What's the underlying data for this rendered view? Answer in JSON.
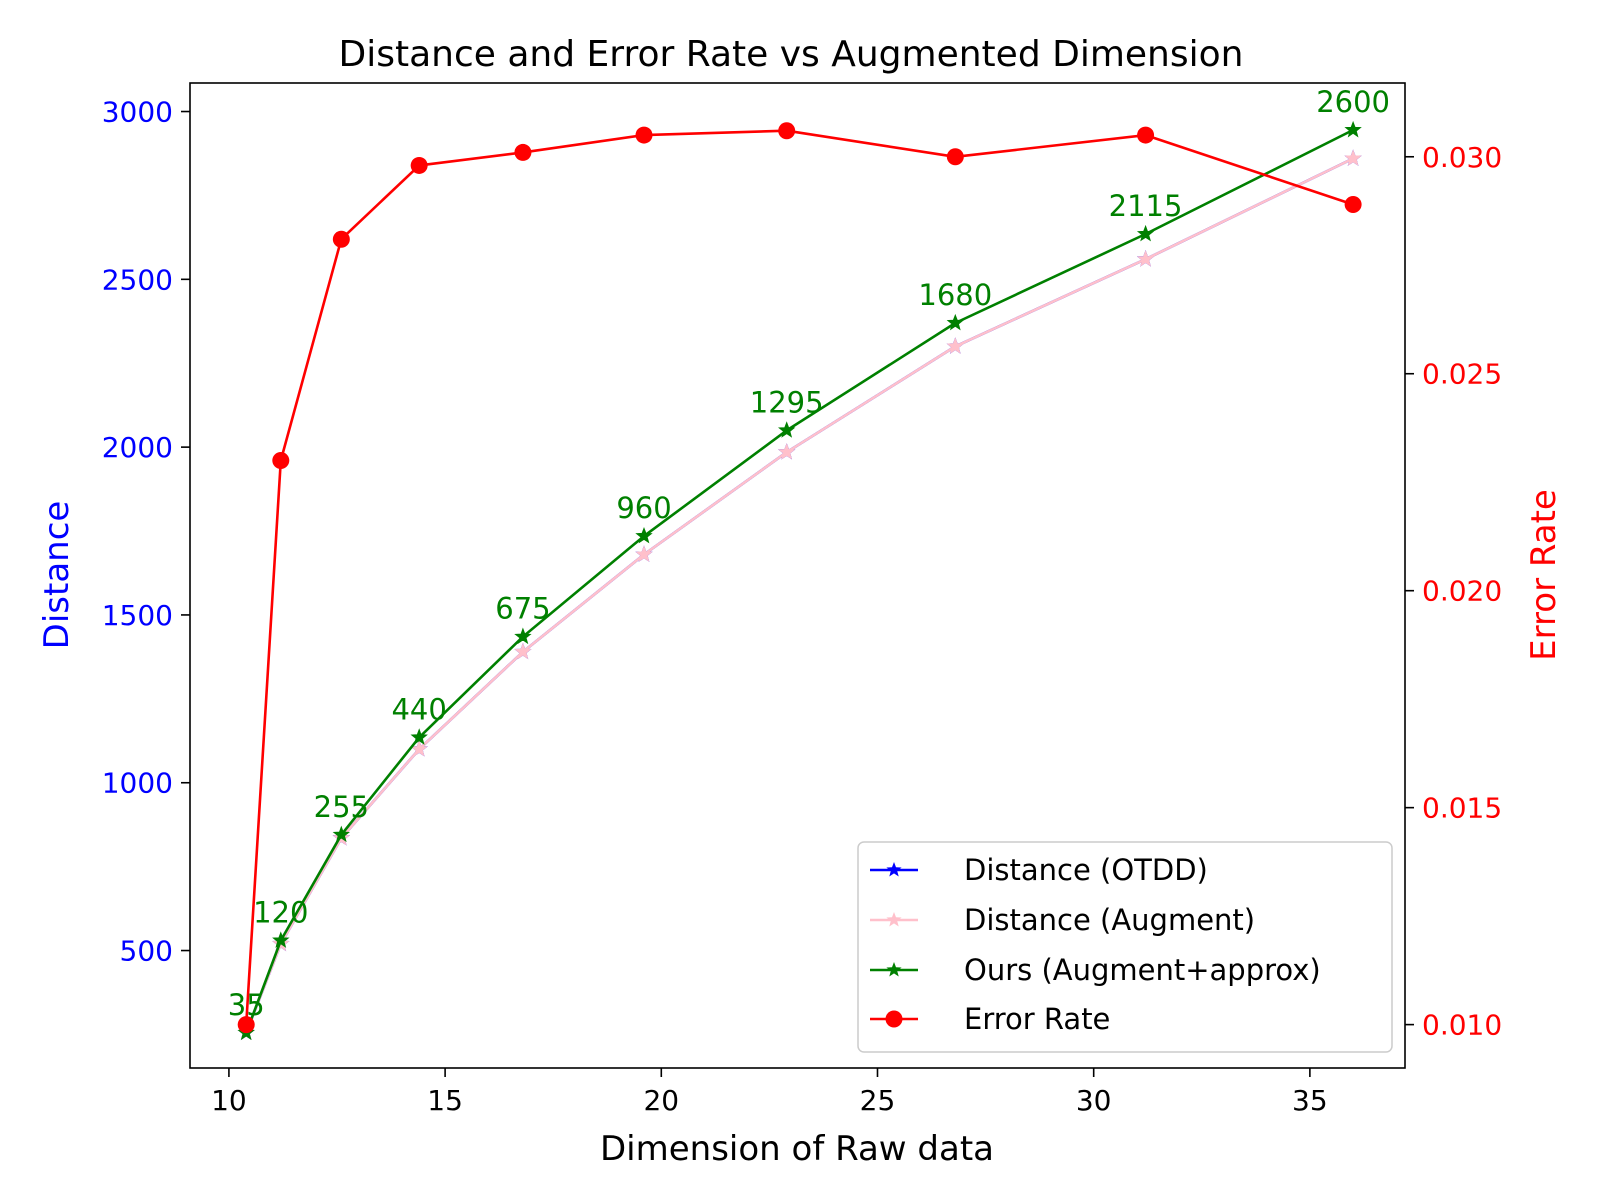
{
  "chart_data": {
    "type": "line",
    "title": "Distance and Error Rate vs Augmented Dimension",
    "xlabel": "Dimension of Raw data",
    "ylabel_left": "Distance",
    "ylabel_right": "Error Rate",
    "xlim": [
      9.1,
      37.2
    ],
    "ylim_left": [
      150,
      3085
    ],
    "ylim_right": [
      0.009,
      0.0317
    ],
    "x": [
      10.4,
      11.2,
      12.6,
      14.4,
      16.8,
      19.6,
      22.9,
      26.8,
      31.2,
      36.0
    ],
    "xticks": [
      10,
      15,
      20,
      25,
      30,
      35
    ],
    "yticks_left": [
      500,
      1000,
      1500,
      2000,
      2500,
      3000
    ],
    "yticks_right": [
      0.01,
      0.015,
      0.02,
      0.025,
      0.03
    ],
    "yticks_right_labels": [
      "0.010",
      "0.015",
      "0.020",
      "0.025",
      "0.030"
    ],
    "grid": false,
    "legend_position": "lower right",
    "colors": {
      "left_axis": "#0000ff",
      "right_axis": "#ff0000",
      "otdd": "#0000ff",
      "augment": "#ffc0cb",
      "ours": "#008000",
      "error": "#ff0000"
    },
    "series": [
      {
        "name": "Distance (OTDD)",
        "axis": "left",
        "marker": "star",
        "color": "#0000ff",
        "values": [
          255,
          520,
          835,
          1100,
          1390,
          1680,
          1985,
          2300,
          2560,
          2860
        ]
      },
      {
        "name": "Distance (Augment)",
        "axis": "left",
        "marker": "star",
        "color": "#ffc0cb",
        "values": [
          255,
          520,
          835,
          1100,
          1390,
          1680,
          1985,
          2300,
          2560,
          2860
        ]
      },
      {
        "name": "Ours (Augment+approx)",
        "axis": "left",
        "marker": "star",
        "color": "#008000",
        "values": [
          255,
          530,
          845,
          1135,
          1435,
          1735,
          2050,
          2370,
          2635,
          2945
        ]
      },
      {
        "name": "Error Rate",
        "axis": "right",
        "marker": "circle",
        "color": "#ff0000",
        "values": [
          0.01,
          0.023,
          0.0281,
          0.0298,
          0.0301,
          0.0305,
          0.0306,
          0.03,
          0.0305,
          0.0289
        ]
      }
    ],
    "annotations": [
      "35",
      "120",
      "255",
      "440",
      "675",
      "960",
      "1295",
      "1680",
      "2115",
      "2600"
    ]
  }
}
